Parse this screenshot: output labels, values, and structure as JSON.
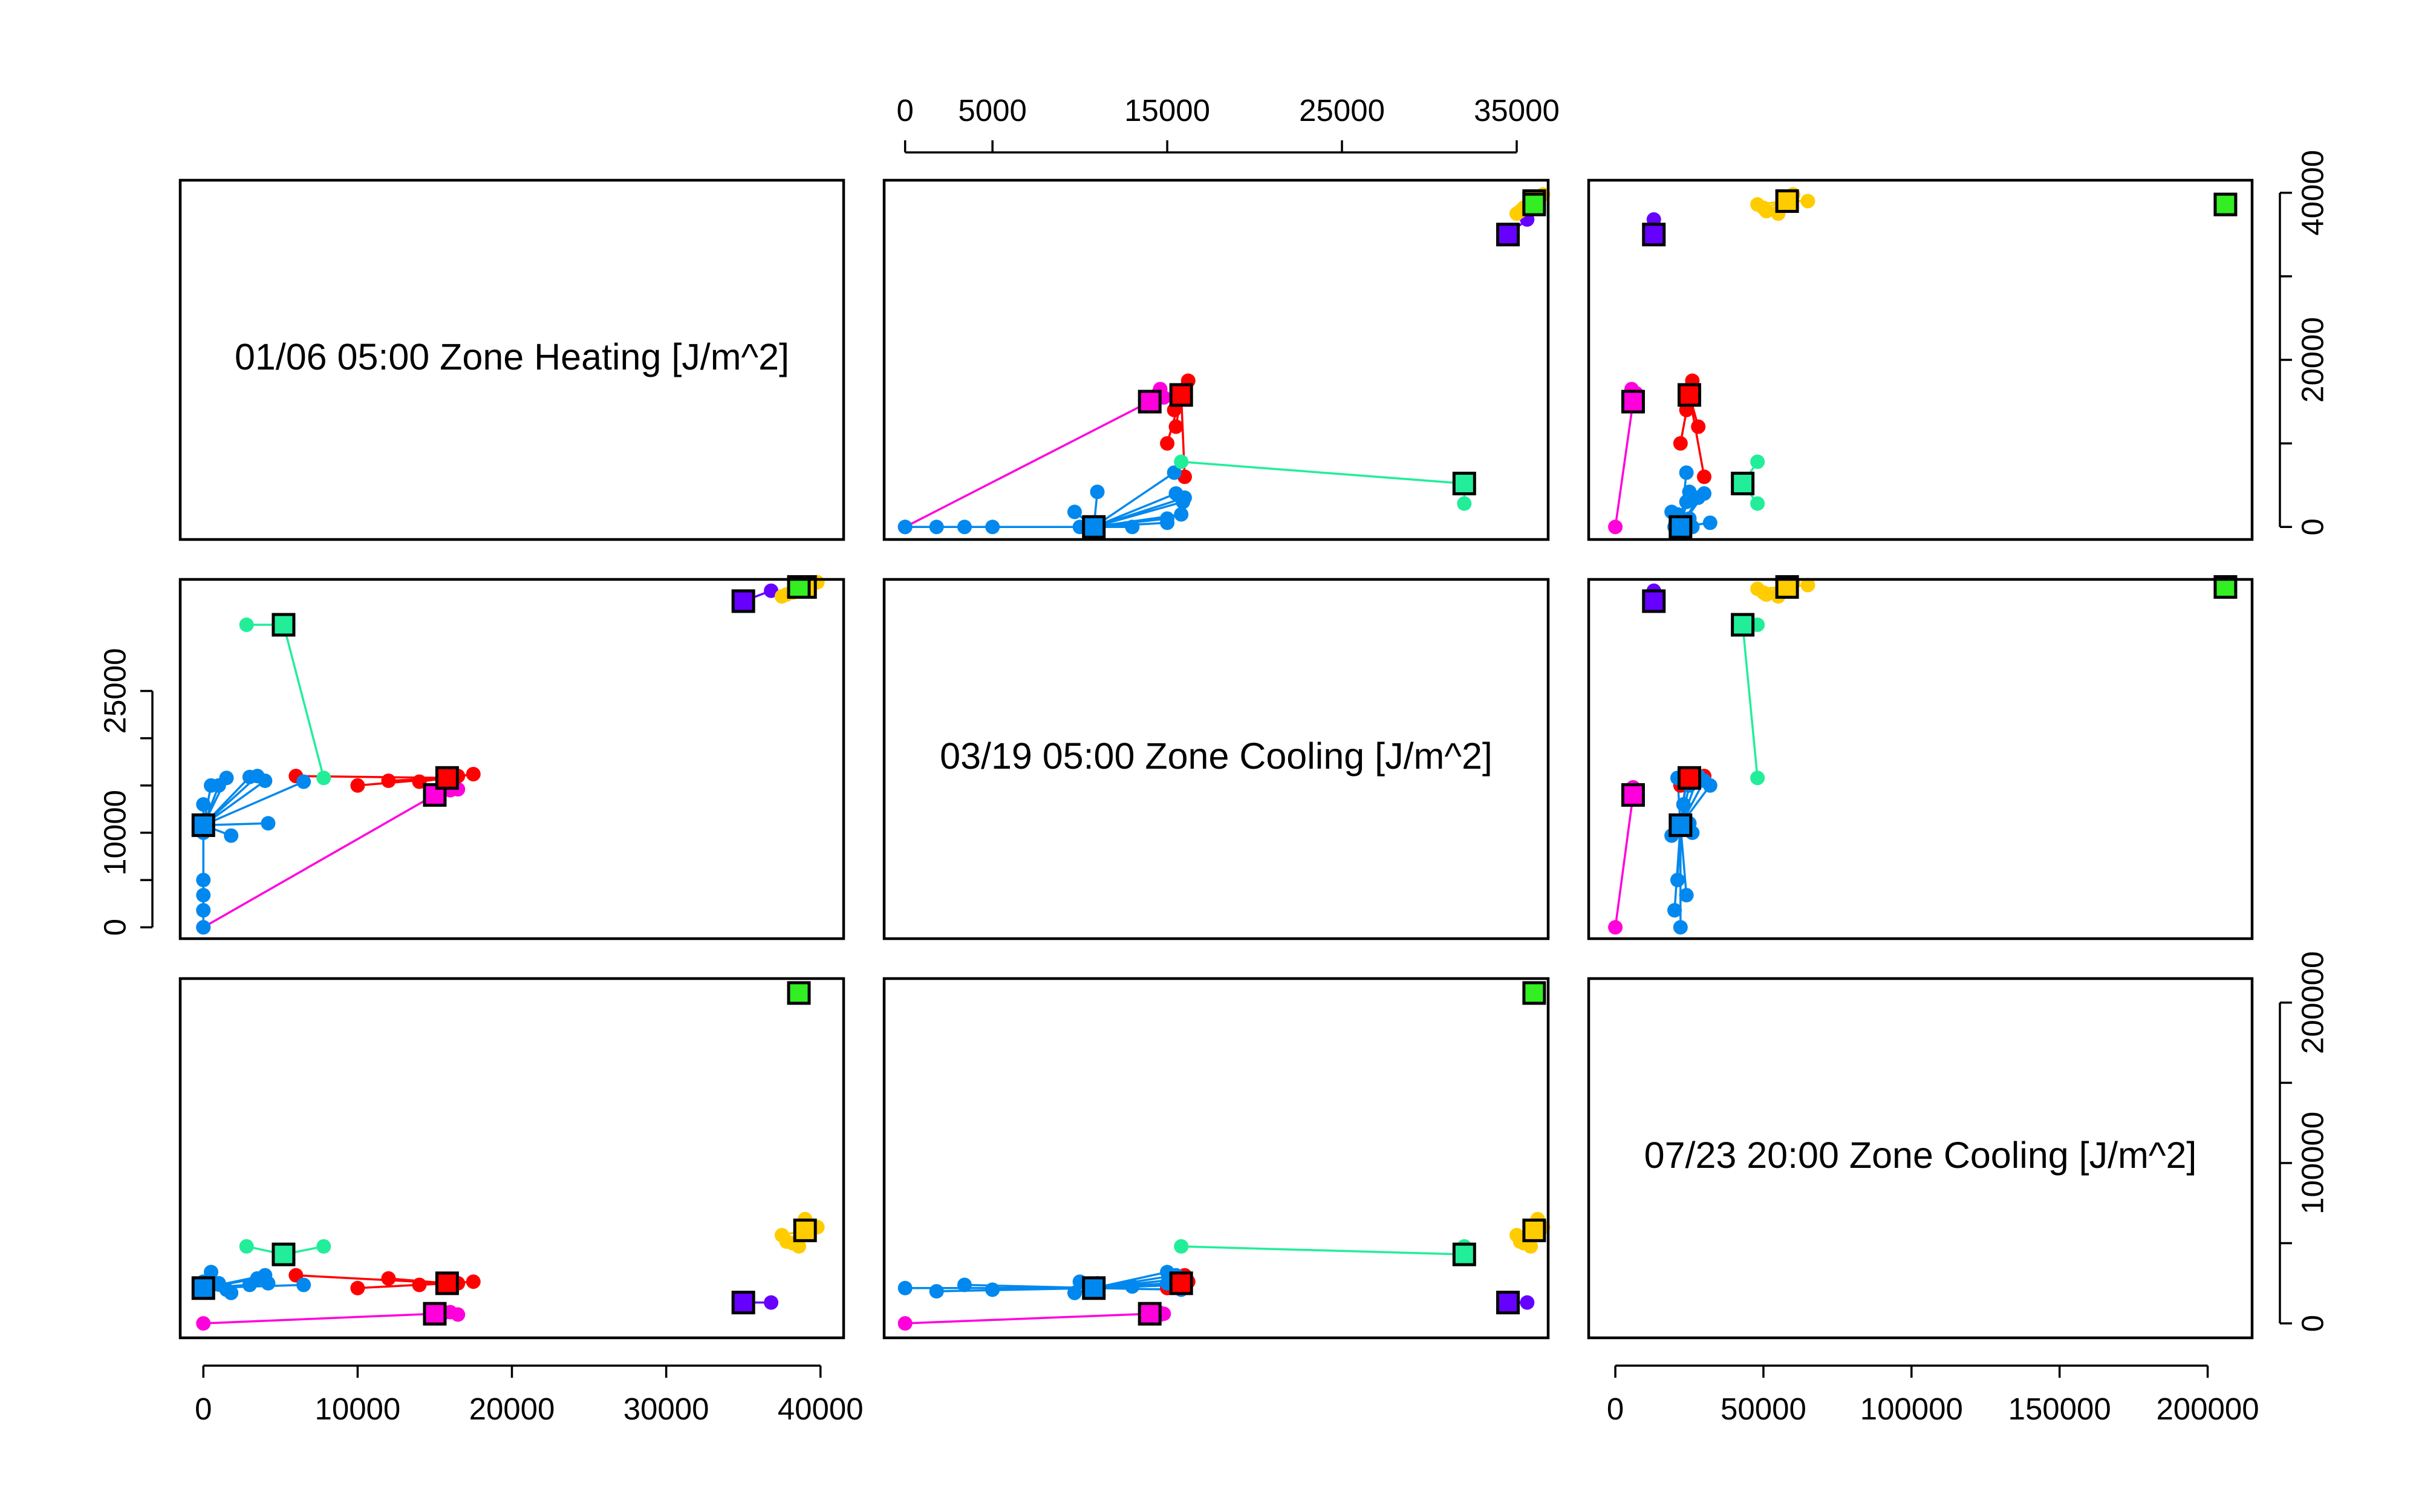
{
  "chart_data": {
    "type": "scatter",
    "variables": [
      {
        "label": "01/06  05:00 Zone Heating [J/m^2]",
        "range": [
          -1500,
          41500
        ]
      },
      {
        "label": "03/19  05:00 Zone Cooling [J/m^2]",
        "range": [
          -1200,
          36800
        ]
      },
      {
        "label": "07/23  20:00 Zone Cooling [J/m^2]",
        "range": [
          -9000,
          215000
        ]
      }
    ],
    "ticks": [
      [
        0,
        10000,
        20000,
        30000,
        40000
      ],
      [
        0,
        5000,
        15000,
        25000,
        35000
      ],
      [
        0,
        50000,
        100000,
        150000,
        200000
      ]
    ],
    "tick_labels": {
      "top": [
        "0",
        "5000",
        "15000",
        "25000",
        "35000"
      ],
      "right_top": [
        "0",
        "20000",
        "40000"
      ],
      "left_middle": [
        "0",
        "10000",
        "25000"
      ],
      "right_bottom": [
        "0",
        "100000",
        "200000"
      ],
      "bottom_left": [
        "0",
        "10000",
        "20000",
        "30000",
        "40000"
      ],
      "bottom_right": [
        "0",
        "50000",
        "100000",
        "150000",
        "200000"
      ]
    },
    "grid": false,
    "legend": "none",
    "clusters": [
      {
        "color": "#ff00dd",
        "center": [
          15000,
          14000,
          6000
        ],
        "points": [
          [
            0,
            0,
            0
          ],
          [
            16000,
            14500,
            7000
          ],
          [
            15500,
            14800,
            6000
          ],
          [
            16500,
            14600,
            5500
          ]
        ]
      },
      {
        "color": "#ff0000",
        "center": [
          15800,
          15800,
          25000
        ],
        "points": [
          [
            6000,
            16000,
            30000
          ],
          [
            12000,
            15500,
            28000
          ],
          [
            17500,
            16200,
            26000
          ],
          [
            10000,
            15000,
            22000
          ],
          [
            14000,
            15400,
            24000
          ],
          [
            16500,
            16000,
            25000
          ]
        ]
      },
      {
        "color": "#0088ee",
        "center": [
          0,
          10800,
          22000
        ],
        "points": [
          [
            0,
            0,
            22000
          ],
          [
            0,
            1800,
            20000
          ],
          [
            0,
            3400,
            24000
          ],
          [
            0,
            5000,
            21000
          ],
          [
            0,
            10000,
            26000
          ],
          [
            0,
            13000,
            23000
          ],
          [
            1000,
            15000,
            25000
          ],
          [
            1500,
            15800,
            21000
          ],
          [
            3500,
            16000,
            28000
          ],
          [
            4000,
            15500,
            30000
          ],
          [
            6500,
            15400,
            24000
          ],
          [
            1800,
            9700,
            19000
          ],
          [
            4200,
            11000,
            25000
          ],
          [
            3000,
            15900,
            24000
          ],
          [
            500,
            15000,
            32000
          ]
        ]
      },
      {
        "color": "#22ee99",
        "center": [
          5200,
          32000,
          43000
        ],
        "points": [
          [
            7800,
            15800,
            48000
          ],
          [
            2800,
            32000,
            48000
          ]
        ]
      },
      {
        "color": "#6600ff",
        "center": [
          35000,
          34500,
          13000
        ],
        "points": [
          [
            36800,
            35600,
            13000
          ]
        ]
      },
      {
        "color": "#ffcc00",
        "center": [
          39000,
          36000,
          58000
        ],
        "points": [
          [
            37500,
            35000,
            55000
          ],
          [
            38200,
            35400,
            50000
          ],
          [
            39800,
            36500,
            60000
          ],
          [
            39000,
            36200,
            65000
          ],
          [
            38600,
            35800,
            48000
          ],
          [
            37800,
            35200,
            51000
          ]
        ]
      },
      {
        "color": "#33ee22",
        "center": [
          38600,
          36000,
          206000
        ],
        "points": []
      }
    ]
  }
}
